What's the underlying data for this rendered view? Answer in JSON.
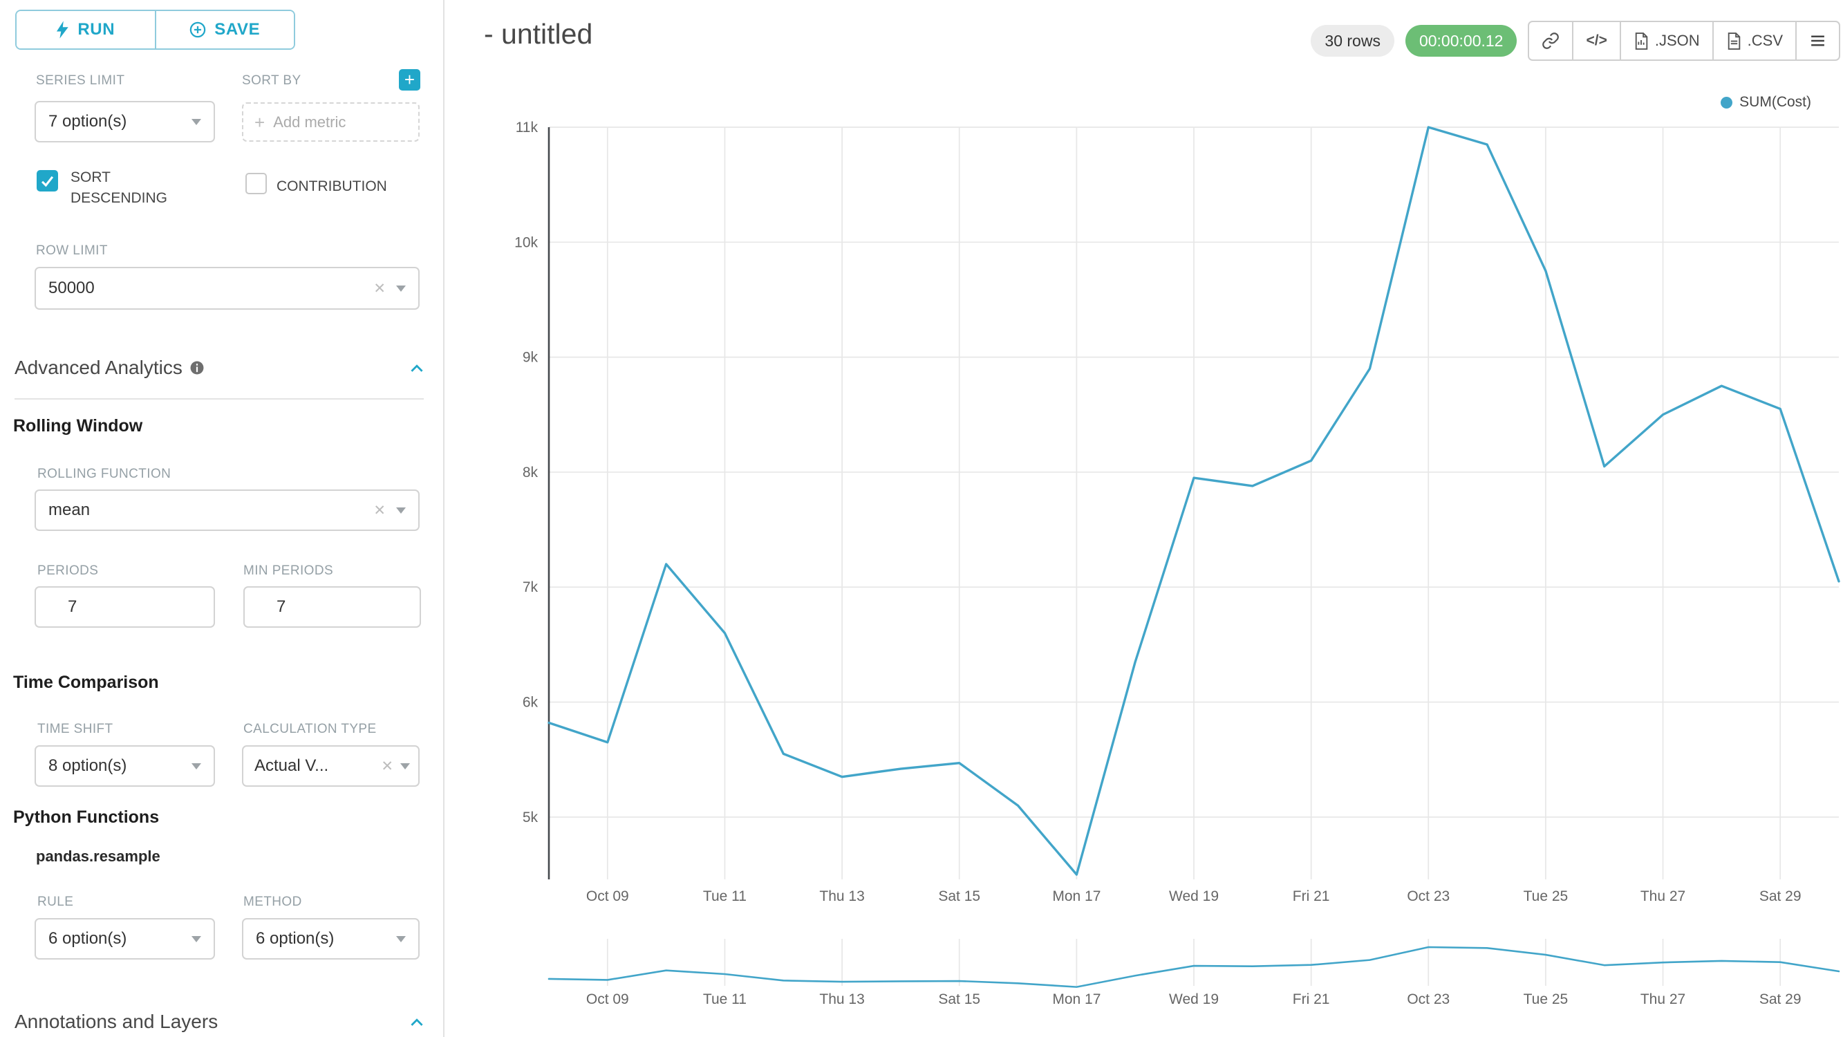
{
  "colors": {
    "accent": "#20A7C9",
    "timer_green": "#6CBE75",
    "rows_gray": "#ECECEC",
    "series": "#42A5C9",
    "grid": "#E7E7E7",
    "axis_line": "#45494D",
    "axis_text": "#666666"
  },
  "toolbar": {
    "run_label": "RUN",
    "save_label": "SAVE"
  },
  "sidebar": {
    "series_limit": {
      "label": "SERIES LIMIT",
      "value": "7 option(s)"
    },
    "sort_by": {
      "label": "SORT BY",
      "placeholder": "Add metric"
    },
    "sort_descending": {
      "label": "SORT DESCENDING",
      "checked": true
    },
    "contribution": {
      "label": "CONTRIBUTION",
      "checked": false
    },
    "row_limit": {
      "label": "ROW LIMIT",
      "value": "50000"
    },
    "advanced_analytics_title": "Advanced Analytics",
    "rolling_window_title": "Rolling Window",
    "rolling_function": {
      "label": "ROLLING FUNCTION",
      "value": "mean"
    },
    "periods": {
      "label": "PERIODS",
      "value": "7"
    },
    "min_periods": {
      "label": "MIN PERIODS",
      "value": "7"
    },
    "time_comparison_title": "Time Comparison",
    "time_shift": {
      "label": "TIME SHIFT",
      "value": "8 option(s)"
    },
    "calculation_type": {
      "label": "CALCULATION TYPE",
      "value": "Actual V..."
    },
    "python_functions_title": "Python Functions",
    "python_functions_subtitle": "pandas.resample",
    "rule": {
      "label": "RULE",
      "value": "6 option(s)"
    },
    "method": {
      "label": "METHOD",
      "value": "6 option(s)"
    },
    "annotations_title": "Annotations and Layers"
  },
  "header": {
    "title": "- untitled",
    "rows_badge": "30 rows",
    "timer_badge": "00:00:00.12",
    "embed_glyph": "</>",
    "json_label": ".JSON",
    "csv_label": ".CSV"
  },
  "chart_data": {
    "type": "line",
    "title": "- untitled",
    "legend": {
      "label": "SUM(Cost)",
      "position": "top-right"
    },
    "series": [
      {
        "name": "SUM(Cost)",
        "color": "#42A5C9",
        "x": [
          "Oct 08",
          "Oct 09",
          "Oct 10",
          "Oct 11",
          "Oct 12",
          "Oct 13",
          "Oct 14",
          "Oct 15",
          "Oct 16",
          "Oct 17",
          "Oct 18",
          "Oct 19",
          "Oct 20",
          "Oct 21",
          "Oct 22",
          "Oct 23",
          "Oct 24",
          "Oct 25",
          "Oct 26",
          "Oct 27",
          "Oct 28",
          "Oct 29",
          "Oct 30"
        ],
        "values": [
          5820,
          5650,
          7200,
          6600,
          5550,
          5350,
          5420,
          5470,
          5100,
          4500,
          6350,
          7950,
          7880,
          8100,
          8900,
          11000,
          10850,
          9750,
          8050,
          8500,
          8750,
          8550,
          7050
        ]
      }
    ],
    "x_tick_labels": [
      "Oct 09",
      "Tue 11",
      "Thu 13",
      "Sat 15",
      "Mon 17",
      "Wed 19",
      "Fri 21",
      "Oct 23",
      "Tue 25",
      "Thu 27",
      "Sat 29"
    ],
    "x_tick_indices": [
      1,
      3,
      5,
      7,
      9,
      11,
      13,
      15,
      17,
      19,
      21
    ],
    "y_ticks": [
      {
        "label": "5k",
        "value": 5000
      },
      {
        "label": "6k",
        "value": 6000
      },
      {
        "label": "7k",
        "value": 7000
      },
      {
        "label": "8k",
        "value": 8000
      },
      {
        "label": "9k",
        "value": 9000
      },
      {
        "label": "10k",
        "value": 10000
      },
      {
        "label": "11k",
        "value": 11000
      }
    ],
    "y_min": 4458,
    "y_max": 11000,
    "grid": true,
    "has_preview_panel": true,
    "xlabel": "",
    "ylabel": ""
  }
}
